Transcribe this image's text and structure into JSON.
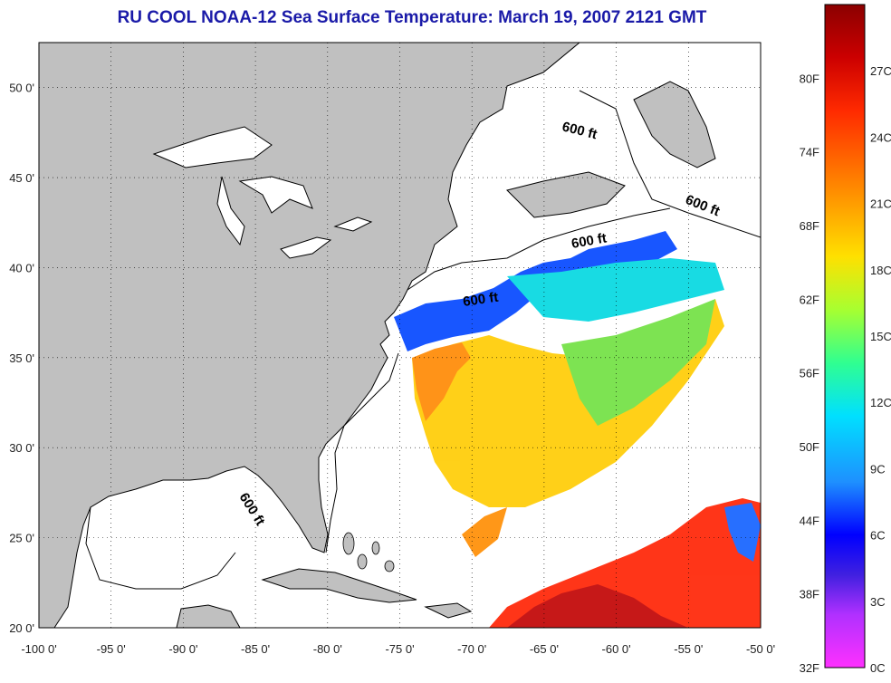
{
  "title": "RU COOL  NOAA-12  Sea Surface Temperature:  March 19, 2007 2121 GMT",
  "map": {
    "lon_range": [
      -100,
      -50
    ],
    "lat_range": [
      20,
      52.5
    ],
    "lon_ticks": [
      "-100 0'",
      "-95 0'",
      "-90 0'",
      "-85 0'",
      "-80 0'",
      "-75 0'",
      "-70 0'",
      "-65 0'",
      "-60 0'",
      "-55 0'",
      "-50 0'"
    ],
    "lat_ticks": [
      "20 0'",
      "25 0'",
      "30 0'",
      "35 0'",
      "40 0'",
      "45 0'",
      "50 0'"
    ],
    "land_color": "#c0c0c0",
    "water_color": "#ffffff",
    "grid": "dotted",
    "contour_label": "600 ft"
  },
  "colorbar": {
    "fahrenheit_labels": [
      "80F",
      "74F",
      "68F",
      "62F",
      "56F",
      "50F",
      "44F",
      "38F",
      "32F"
    ],
    "celsius_labels": [
      "27C",
      "24C",
      "21C",
      "18C",
      "15C",
      "12C",
      "9C",
      "6C",
      "3C",
      "0C"
    ],
    "colors": [
      "#8b0000",
      "#ff0000",
      "#ff8c00",
      "#ffff00",
      "#7fff00",
      "#00ffff",
      "#1e90ff",
      "#0000ff",
      "#8a2be2",
      "#ff00ff"
    ]
  }
}
